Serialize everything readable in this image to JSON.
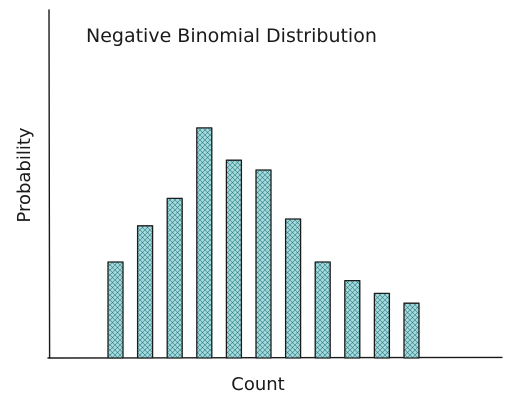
{
  "chart_data": {
    "type": "bar",
    "title": "Negative Binomial Distribution",
    "xlabel": "Count",
    "ylabel": "Probability",
    "values": [
      0.098,
      0.135,
      0.163,
      0.235,
      0.202,
      0.192,
      0.142,
      0.098,
      0.079,
      0.066,
      0.056
    ],
    "ylim": [
      0,
      0.24
    ],
    "grid": false,
    "legend": "none",
    "colors": {
      "bar_fill": "#a8dadc",
      "bar_hatch": "#2a7f88",
      "stroke": "#1c1c1c"
    }
  }
}
